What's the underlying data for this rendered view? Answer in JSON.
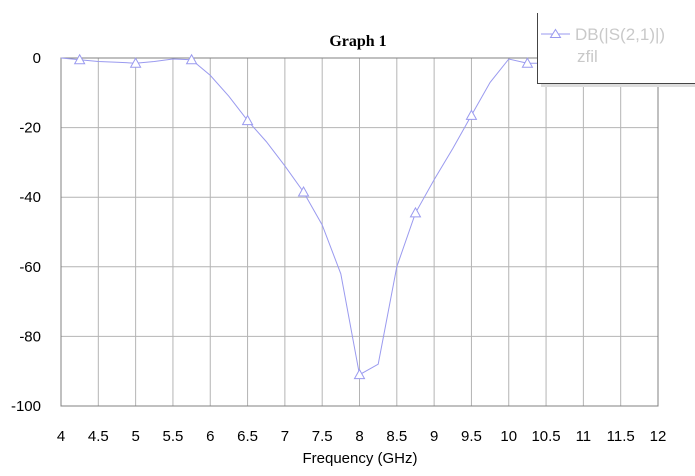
{
  "chart_data": {
    "type": "line",
    "title": "Graph 1",
    "xlabel": "Frequency (GHz)",
    "ylabel": "",
    "xlim": [
      4,
      12
    ],
    "ylim": [
      -100,
      0
    ],
    "grid": true,
    "legend_position": "top-right",
    "x_ticks": [
      "4",
      "4.5",
      "5",
      "5.5",
      "6",
      "6.5",
      "7",
      "7.5",
      "8",
      "8.5",
      "9",
      "9.5",
      "10",
      "10.5",
      "11",
      "11.5",
      "12"
    ],
    "y_ticks": [
      "0",
      "-20",
      "-40",
      "-60",
      "-80",
      "-100"
    ],
    "series": [
      {
        "name": "DB(|S(2,1)|)",
        "sub_label": "zfil",
        "color": "#9a9aef",
        "marker": "triangle",
        "x": [
          4.0,
          4.25,
          4.5,
          4.75,
          5.0,
          5.25,
          5.5,
          5.75,
          6.0,
          6.25,
          6.5,
          6.75,
          7.0,
          7.25,
          7.5,
          7.75,
          8.0,
          8.25,
          8.5,
          8.75,
          9.0,
          9.25,
          9.5,
          9.75,
          10.0,
          10.25,
          10.5
        ],
        "y": [
          0,
          -0.5,
          -1,
          -1.2,
          -1.5,
          -1,
          -0.3,
          -0.5,
          -5,
          -11,
          -18,
          -24,
          -31,
          -38.5,
          -48,
          -62,
          -91,
          -88,
          -60,
          -44.5,
          -35,
          -26,
          -16.5,
          -7,
          -0.3,
          -1.5,
          -1.5
        ],
        "markers_x": [
          4.25,
          5.0,
          5.75,
          6.5,
          7.25,
          8.0,
          8.75,
          9.5,
          10.25
        ]
      }
    ]
  },
  "colors": {
    "grid": "#b4b4b4",
    "axis": "#808080",
    "legend_border": "#444444",
    "legend_shadow": "#dddddd"
  }
}
